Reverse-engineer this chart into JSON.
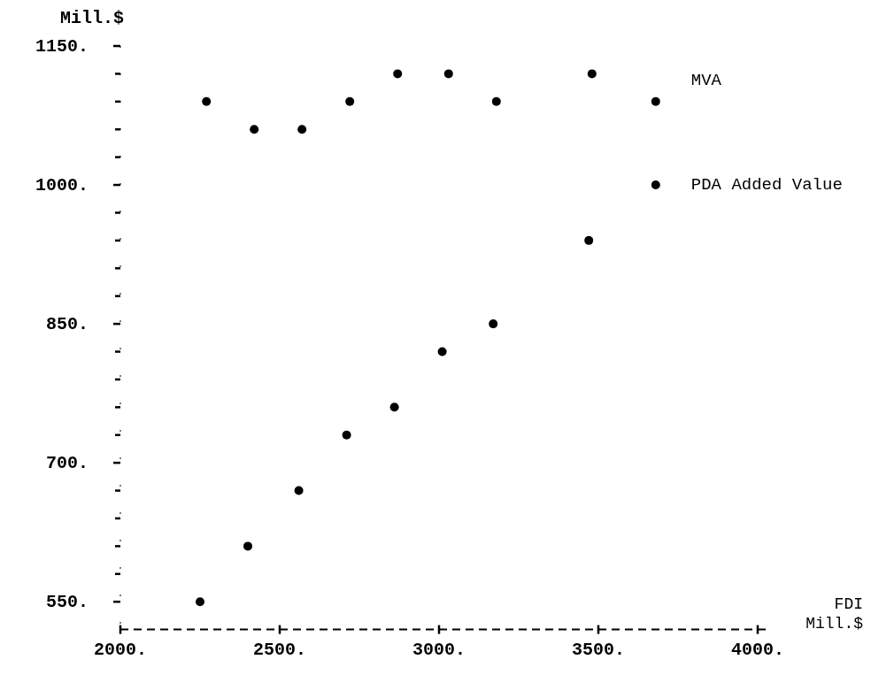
{
  "chart_data": {
    "type": "scatter",
    "ylabel": "Mill.$",
    "xlabel": "FDI Mill.$",
    "xlim": [
      2000,
      4030
    ],
    "xticks": [
      {
        "value": 2000,
        "label": "2000."
      },
      {
        "value": 2500,
        "label": "2500."
      },
      {
        "value": 3000,
        "label": "3000."
      },
      {
        "value": 3500,
        "label": "3500."
      },
      {
        "value": 4000,
        "label": "4000."
      }
    ],
    "ylim": [
      520,
      1150
    ],
    "yticks": [
      {
        "value": 550,
        "label": "550."
      },
      {
        "value": 580,
        "label": null
      },
      {
        "value": 610,
        "label": null
      },
      {
        "value": 640,
        "label": null
      },
      {
        "value": 670,
        "label": null
      },
      {
        "value": 700,
        "label": "700."
      },
      {
        "value": 730,
        "label": null
      },
      {
        "value": 760,
        "label": null
      },
      {
        "value": 790,
        "label": null
      },
      {
        "value": 820,
        "label": null
      },
      {
        "value": 850,
        "label": "850."
      },
      {
        "value": 880,
        "label": null
      },
      {
        "value": 910,
        "label": null
      },
      {
        "value": 940,
        "label": null
      },
      {
        "value": 970,
        "label": null
      },
      {
        "value": 1000,
        "label": "1000."
      },
      {
        "value": 1030,
        "label": null
      },
      {
        "value": 1060,
        "label": null
      },
      {
        "value": 1090,
        "label": null
      },
      {
        "value": 1120,
        "label": null
      },
      {
        "value": 1150,
        "label": "1150."
      }
    ],
    "marker": "circle",
    "series": [
      {
        "name": "PDA Added Value",
        "color": "#000000",
        "x": [
          2250,
          2400,
          2560,
          2710,
          2860,
          3010,
          3170,
          3470,
          3680
        ],
        "values": [
          550,
          610,
          670,
          730,
          760,
          820,
          850,
          940,
          1000
        ]
      },
      {
        "name": "MVA",
        "color": "#000000",
        "x": [
          2270,
          2420,
          2570,
          2720,
          2870,
          3030,
          3180,
          3480,
          3680
        ],
        "values": [
          1090,
          1060,
          1060,
          1090,
          1120,
          1120,
          1090,
          1120,
          1090
        ]
      }
    ]
  }
}
